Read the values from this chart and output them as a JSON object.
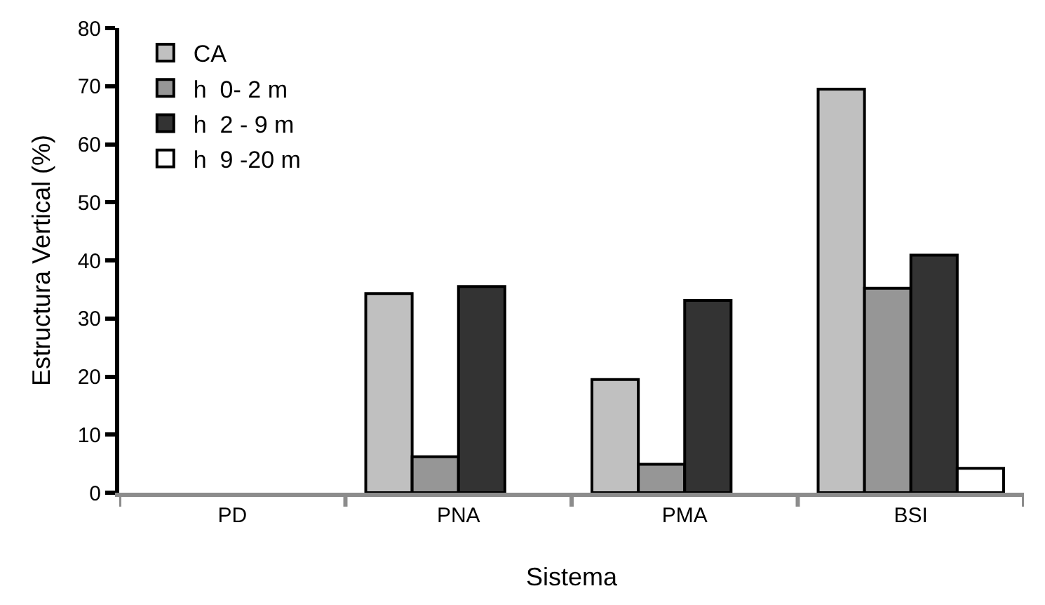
{
  "chart_data": {
    "type": "bar",
    "xlabel": "Sistema",
    "ylabel": "Estructura Vertical (%)",
    "categories": [
      "PD",
      "PNA",
      "PMA",
      "BSI"
    ],
    "series": [
      {
        "name": "CA",
        "color": "#c0c0c0",
        "values": [
          null,
          34.3,
          19.5,
          69.5
        ]
      },
      {
        "name": "h  0- 2 m",
        "color": "#969696",
        "values": [
          null,
          6.2,
          4.9,
          35.2
        ]
      },
      {
        "name": "h  2 - 9 m",
        "color": "#333333",
        "values": [
          null,
          35.5,
          33.1,
          40.9
        ]
      },
      {
        "name": "h  9 -20 m",
        "color": "#ffffff",
        "values": [
          null,
          null,
          null,
          4.2
        ]
      }
    ],
    "ylim": [
      0,
      80
    ],
    "yticks": [
      0,
      10,
      20,
      30,
      40,
      50,
      60,
      70,
      80
    ],
    "legend": "top left"
  }
}
